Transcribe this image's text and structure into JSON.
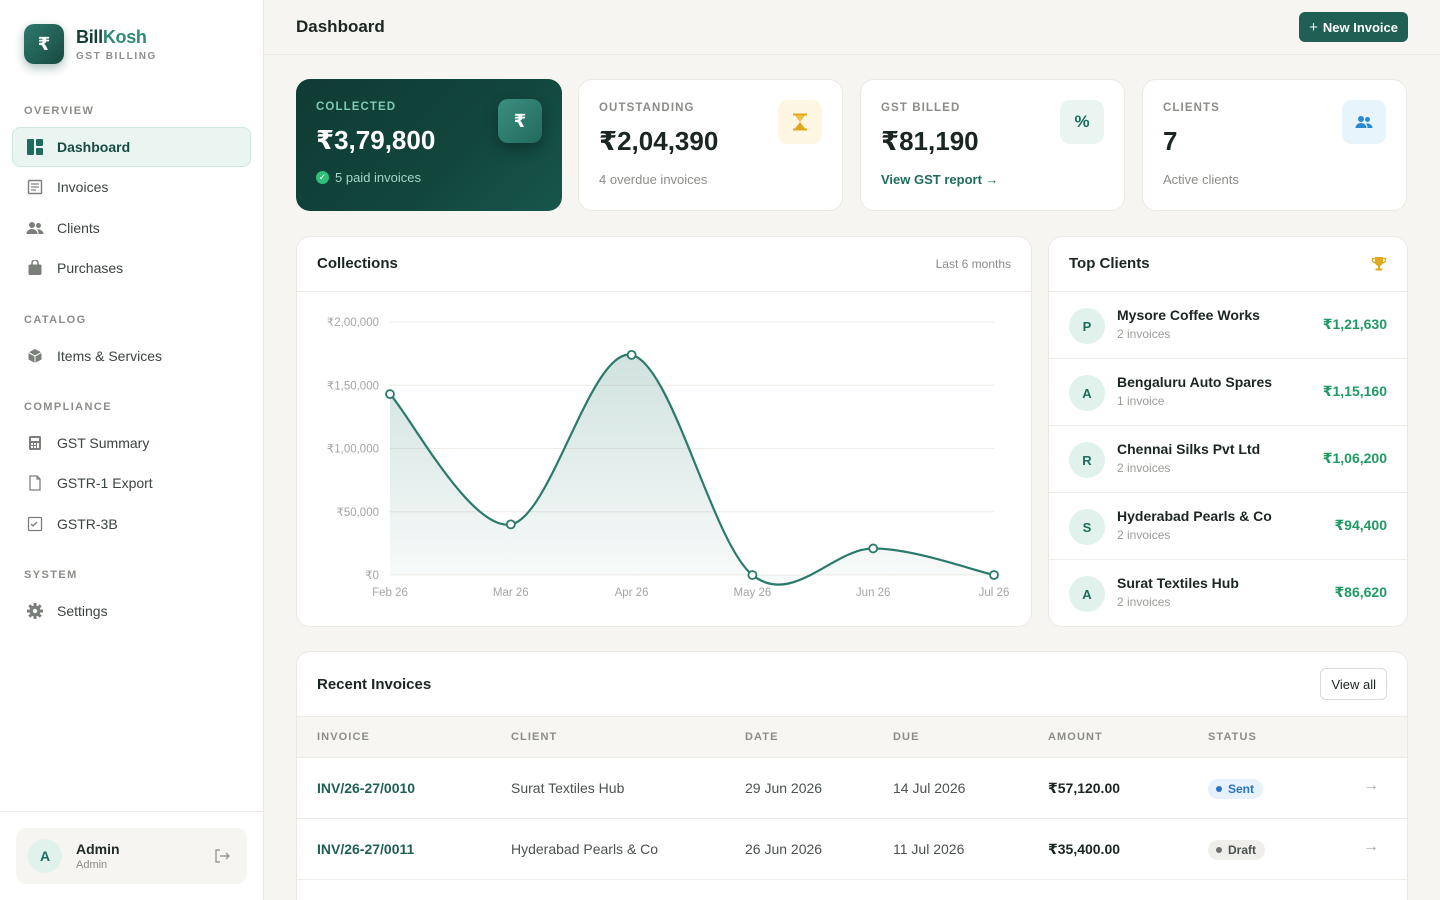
{
  "brand": {
    "name_part1": "Bill",
    "name_part2": "Kosh",
    "subtitle": "GST BILLING",
    "logo_symbol": "₹"
  },
  "sidebar": {
    "sections": {
      "overview": "OVERVIEW",
      "catalog": "CATALOG",
      "compliance": "COMPLIANCE",
      "system": "SYSTEM"
    },
    "items": [
      {
        "label": "Dashboard",
        "icon": "dashboard-icon",
        "active": true
      },
      {
        "label": "Invoices",
        "icon": "invoice-icon"
      },
      {
        "label": "Clients",
        "icon": "users-icon"
      },
      {
        "label": "Purchases",
        "icon": "bag-icon"
      },
      {
        "label": "Items & Services",
        "icon": "box-icon"
      },
      {
        "label": "GST Summary",
        "icon": "calculator-icon"
      },
      {
        "label": "GSTR-1 Export",
        "icon": "json-file-icon"
      },
      {
        "label": "GSTR-3B",
        "icon": "checklist-icon"
      },
      {
        "label": "Settings",
        "icon": "gear-icon"
      }
    ],
    "user": {
      "initial": "A",
      "name": "Admin",
      "role": "Admin"
    }
  },
  "header": {
    "title": "Dashboard",
    "new_invoice_label": "New Invoice"
  },
  "stats": {
    "collected": {
      "label": "COLLECTED",
      "value": "₹3,79,800",
      "sub": "5 paid invoices",
      "icon": "rupee-icon"
    },
    "outstanding": {
      "label": "OUTSTANDING",
      "value": "₹2,04,390",
      "sub": "4 overdue invoices",
      "icon": "hourglass-icon"
    },
    "gst_billed": {
      "label": "GST BILLED",
      "value": "₹81,190",
      "link": "View GST report →",
      "icon": "percent-icon"
    },
    "clients": {
      "label": "CLIENTS",
      "value": "7",
      "sub": "Active clients",
      "icon": "users-icon"
    }
  },
  "colors": {
    "accent": "#1f5f54",
    "line": "#2a7a6c",
    "positive": "#1f9a62",
    "dark_card": "#0f3b34"
  },
  "collections": {
    "title": "Collections",
    "range": "Last 6 months"
  },
  "chart_data": {
    "type": "area",
    "title": "Collections",
    "categories": [
      "Feb 26",
      "Mar 26",
      "Apr 26",
      "May 26",
      "Jun 26",
      "Jul 26"
    ],
    "series": [
      {
        "values": [
          143000,
          40000,
          174000,
          0,
          21000,
          0
        ]
      }
    ],
    "ylim": [
      0,
      200000
    ],
    "yticks": [
      0,
      50000,
      100000,
      150000,
      200000
    ],
    "ytick_labels": [
      "₹0",
      "₹50,000",
      "₹1,00,000",
      "₹1,50,000",
      "₹2,00,000"
    ],
    "grid": true,
    "legend": "none"
  },
  "top_clients": {
    "title": "Top Clients",
    "icon": "trophy-icon",
    "items": [
      {
        "initial": "P",
        "name": "Mysore Coffee Works",
        "count": "2 invoices",
        "amount": "₹1,21,630"
      },
      {
        "initial": "A",
        "name": "Bengaluru Auto Spares",
        "count": "1 invoice",
        "amount": "₹1,15,160"
      },
      {
        "initial": "R",
        "name": "Chennai Silks Pvt Ltd",
        "count": "2 invoices",
        "amount": "₹1,06,200"
      },
      {
        "initial": "S",
        "name": "Hyderabad Pearls & Co",
        "count": "2 invoices",
        "amount": "₹94,400"
      },
      {
        "initial": "A",
        "name": "Surat Textiles Hub",
        "count": "2 invoices",
        "amount": "₹86,620"
      }
    ]
  },
  "recent_invoices": {
    "title": "Recent Invoices",
    "view_all": "View all",
    "columns": [
      "INVOICE",
      "CLIENT",
      "DATE",
      "DUE",
      "AMOUNT",
      "STATUS"
    ],
    "rows": [
      {
        "invoice": "INV/26-27/0010",
        "client": "Surat Textiles Hub",
        "date": "29 Jun 2026",
        "due": "14 Jul 2026",
        "amount": "₹57,120.00",
        "status": "Sent"
      },
      {
        "invoice": "INV/26-27/0011",
        "client": "Hyderabad Pearls & Co",
        "date": "26 Jun 2026",
        "due": "11 Jul 2026",
        "amount": "₹35,400.00",
        "status": "Draft"
      }
    ]
  }
}
